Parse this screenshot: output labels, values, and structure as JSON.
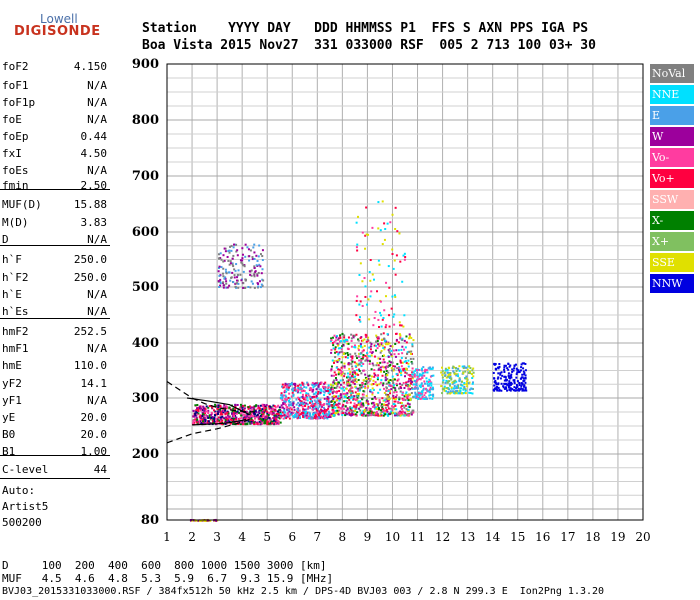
{
  "logo": {
    "line1": "Lowell",
    "line2": "DIGISONDE"
  },
  "header": {
    "row1": "Station    YYYY DAY   DDD HHMMSS P1  FFS S AXN PPS IGA PS",
    "row2": "Boa Vista 2015 Nov27  331 033000 RSF  005 2 713 100 03+ 30"
  },
  "params": [
    {
      "name": "foF2",
      "value": "4.150"
    },
    {
      "name": "foF1",
      "value": "N/A"
    },
    {
      "name": "foF1p",
      "value": "N/A"
    },
    {
      "name": "foE",
      "value": "N/A"
    },
    {
      "name": "foEp",
      "value": "0.44"
    },
    {
      "name": "fxI",
      "value": "4.50"
    },
    {
      "name": "foEs",
      "value": "N/A"
    },
    {
      "name": "fmin",
      "value": "2.50"
    },
    {
      "name": "MUF(D)",
      "value": "15.88"
    },
    {
      "name": "M(D)",
      "value": "3.83"
    },
    {
      "name": "D",
      "value": "N/A"
    },
    {
      "name": "h`F",
      "value": "250.0"
    },
    {
      "name": "h`F2",
      "value": "250.0"
    },
    {
      "name": "h`E",
      "value": "N/A"
    },
    {
      "name": "h`Es",
      "value": "N/A"
    },
    {
      "name": "hmF2",
      "value": "252.5"
    },
    {
      "name": "hmF1",
      "value": "N/A"
    },
    {
      "name": "hmE",
      "value": "110.0"
    },
    {
      "name": "yF2",
      "value": "14.1"
    },
    {
      "name": "yF1",
      "value": "N/A"
    },
    {
      "name": "yE",
      "value": "20.0"
    },
    {
      "name": "B0",
      "value": "20.0"
    },
    {
      "name": "B1",
      "value": "1.00"
    },
    {
      "name": "C-level",
      "value": "44"
    }
  ],
  "notes": {
    "auto": "Auto:",
    "artist": "Artist5",
    "code": "500200"
  },
  "footer": {
    "d_row": "D     100  200  400  600  800 1000 1500 3000 [km]",
    "muf_row": "MUF   4.5  4.6  4.8  5.3  5.9  6.7  9.3 15.9 [MHz]",
    "file_row": "BVJ03_2015331033000.RSF / 384fx512h 50 kHz 2.5 km / DPS-4D BVJ03 003 / 2.8 N 299.3 E  Ion2Png 1.3.20"
  },
  "legend": [
    {
      "label": "NoVal",
      "color": "#808080"
    },
    {
      "label": "NNE",
      "color": "#00e0ff"
    },
    {
      "label": "E",
      "color": "#4aa0e8"
    },
    {
      "label": "W",
      "color": "#9c009c"
    },
    {
      "label": "Vo-",
      "color": "#ff3ca0"
    },
    {
      "label": "Vo+",
      "color": "#ff0040"
    },
    {
      "label": "SSW",
      "color": "#ffb0b0"
    },
    {
      "label": "X-",
      "color": "#008000"
    },
    {
      "label": "X+",
      "color": "#80c060"
    },
    {
      "label": "SSE",
      "color": "#e0e000"
    },
    {
      "label": "NNW",
      "color": "#0000e0"
    }
  ],
  "chart_data": {
    "type": "scatter",
    "xlim": [
      1,
      20
    ],
    "ylim": [
      80,
      900
    ],
    "xticks": [
      1,
      2,
      3,
      4,
      5,
      6,
      7,
      8,
      9,
      10,
      11,
      12,
      13,
      14,
      15,
      16,
      17,
      18,
      19,
      20
    ],
    "yticks": [
      80,
      200,
      300,
      400,
      500,
      600,
      700,
      800,
      900
    ],
    "grid": true,
    "clusters": [
      {
        "x": [
          2.0,
          5.5
        ],
        "y": [
          255,
          290
        ],
        "n": 700,
        "colors": [
          "#ff0040",
          "#9c009c",
          "#ff3ca0",
          "#008000",
          "#000080"
        ]
      },
      {
        "x": [
          5.5,
          7.5
        ],
        "y": [
          265,
          330
        ],
        "n": 500,
        "colors": [
          "#ff0040",
          "#ff3ca0",
          "#9c009c",
          "#00e0ff",
          "#4aa0e8"
        ]
      },
      {
        "x": [
          7.5,
          10.8
        ],
        "y": [
          270,
          420
        ],
        "n": 1100,
        "colors": [
          "#ff0040",
          "#ff3ca0",
          "#9c009c",
          "#008000",
          "#00e0ff",
          "#e0e000",
          "#808080"
        ]
      },
      {
        "x": [
          10.8,
          11.6
        ],
        "y": [
          300,
          360
        ],
        "n": 150,
        "colors": [
          "#4aa0e8",
          "#00e0ff",
          "#ff3ca0"
        ]
      },
      {
        "x": [
          11.9,
          13.2
        ],
        "y": [
          310,
          360
        ],
        "n": 180,
        "colors": [
          "#4aa0e8",
          "#00e0ff",
          "#e0e000",
          "#80c060"
        ]
      },
      {
        "x": [
          14.0,
          15.3
        ],
        "y": [
          315,
          365
        ],
        "n": 180,
        "colors": [
          "#0000e0"
        ]
      },
      {
        "x": [
          3.0,
          4.8
        ],
        "y": [
          500,
          580
        ],
        "n": 180,
        "colors": [
          "#9c009c",
          "#4aa0e8",
          "#808080"
        ]
      },
      {
        "x": [
          8.5,
          10.5
        ],
        "y": [
          430,
          660
        ],
        "n": 100,
        "colors": [
          "#ff0040",
          "#ff3ca0",
          "#e0e000",
          "#00e0ff"
        ]
      },
      {
        "x": [
          1.9,
          3.0
        ],
        "y": [
          80,
          82
        ],
        "n": 50,
        "colors": [
          "#9c009c",
          "#e0e000"
        ]
      }
    ],
    "lines": [
      {
        "name": "",
        "style": "dashed",
        "x": [
          1,
          1.5,
          2,
          2.5,
          3,
          3.5,
          4,
          4.5
        ],
        "y": [
          330,
          315,
          300,
          290,
          283,
          279,
          276,
          275
        ]
      },
      {
        "name": "",
        "style": "dashed",
        "x": [
          1,
          2,
          3,
          4,
          4.3
        ],
        "y": [
          220,
          236,
          245,
          257,
          262
        ]
      },
      {
        "name": "",
        "style": "solid",
        "x": [
          2,
          2.5,
          3,
          3.5,
          4,
          4.15
        ],
        "y": [
          252,
          253,
          254,
          256,
          260,
          262
        ]
      },
      {
        "name": "",
        "style": "solid",
        "x": [
          1.8,
          2.6,
          3.5,
          4.3
        ],
        "y": [
          300,
          295,
          288,
          270
        ]
      }
    ]
  }
}
